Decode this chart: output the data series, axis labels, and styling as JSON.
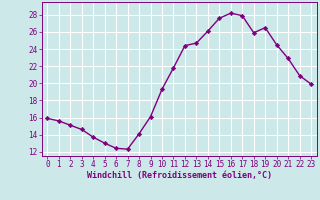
{
  "x": [
    0,
    1,
    2,
    3,
    4,
    5,
    6,
    7,
    8,
    9,
    10,
    11,
    12,
    13,
    14,
    15,
    16,
    17,
    18,
    19,
    20,
    21,
    22,
    23
  ],
  "y": [
    15.9,
    15.6,
    15.1,
    14.6,
    13.7,
    13.0,
    12.4,
    12.3,
    14.1,
    16.1,
    19.3,
    21.8,
    24.4,
    24.7,
    26.1,
    27.6,
    28.2,
    27.9,
    25.9,
    26.5,
    24.5,
    22.9,
    20.9,
    19.9
  ],
  "line_color": "#800080",
  "marker": "D",
  "marker_size": 2.2,
  "bg_color": "#cce8e8",
  "grid_color": "#ffffff",
  "xlabel": "Windchill (Refroidissement éolien,°C)",
  "xlabel_color": "#800080",
  "tick_color": "#800080",
  "spine_color": "#800080",
  "ylim": [
    11.5,
    29.5
  ],
  "xlim": [
    -0.5,
    23.5
  ],
  "yticks": [
    12,
    14,
    16,
    18,
    20,
    22,
    24,
    26,
    28
  ],
  "xticks": [
    0,
    1,
    2,
    3,
    4,
    5,
    6,
    7,
    8,
    9,
    10,
    11,
    12,
    13,
    14,
    15,
    16,
    17,
    18,
    19,
    20,
    21,
    22,
    23
  ],
  "xtick_labels": [
    "0",
    "1",
    "2",
    "3",
    "4",
    "5",
    "6",
    "7",
    "8",
    "9",
    "10",
    "11",
    "12",
    "13",
    "14",
    "15",
    "16",
    "17",
    "18",
    "19",
    "20",
    "21",
    "22",
    "23"
  ],
  "ytick_labels": [
    "12",
    "14",
    "16",
    "18",
    "20",
    "22",
    "24",
    "26",
    "28"
  ],
  "xlabel_fontsize": 6.0,
  "tick_fontsize": 5.5,
  "linewidth": 1.0
}
